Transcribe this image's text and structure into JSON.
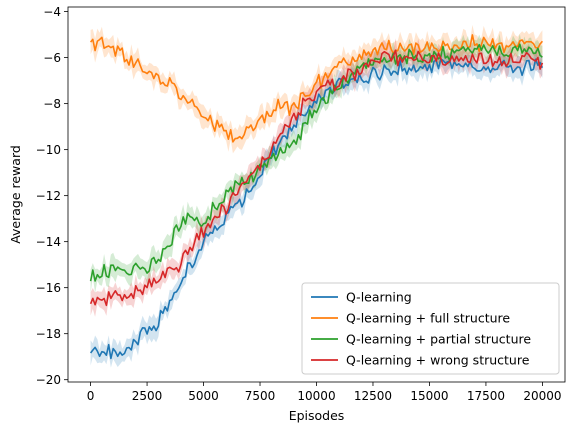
{
  "chart_data": {
    "type": "line",
    "xlabel": "Episodes",
    "ylabel": "Average reward",
    "xlim": [
      -1000,
      21000
    ],
    "ylim": [
      -20.1,
      -3.8
    ],
    "xticks": [
      0,
      2500,
      5000,
      7500,
      10000,
      12500,
      15000,
      17500,
      20000
    ],
    "xtick_labels": [
      "0",
      "2500",
      "5000",
      "7500",
      "10000",
      "12500",
      "15000",
      "17500",
      "20000"
    ],
    "yticks": [
      -20,
      -18,
      -16,
      -14,
      -12,
      -10,
      -8,
      -6,
      -4
    ],
    "ytick_labels": [
      "−20",
      "−18",
      "−16",
      "−14",
      "−12",
      "−10",
      "−8",
      "−6",
      "−4"
    ],
    "grid": false,
    "legend_position": "lower-right",
    "x": [
      0,
      1000,
      2000,
      3000,
      4000,
      5000,
      6000,
      7000,
      8000,
      9000,
      10000,
      11000,
      12000,
      13000,
      14000,
      15000,
      16000,
      17000,
      18000,
      19000,
      20000
    ],
    "series": [
      {
        "name": "Q-learning",
        "color": "#1f77b4",
        "values": [
          -18.7,
          -18.8,
          -18.3,
          -17.5,
          -15.8,
          -14.0,
          -13.0,
          -11.8,
          -10.2,
          -8.9,
          -7.9,
          -7.2,
          -6.9,
          -6.6,
          -6.4,
          -6.4,
          -6.3,
          -6.4,
          -6.4,
          -6.4,
          -6.4
        ]
      },
      {
        "name": "Q-learning + full structure",
        "color": "#ff7f0e",
        "values": [
          -5.3,
          -5.6,
          -6.2,
          -6.8,
          -7.7,
          -8.4,
          -9.4,
          -9.3,
          -8.2,
          -8.1,
          -7.2,
          -6.3,
          -5.9,
          -5.6,
          -5.6,
          -5.5,
          -5.4,
          -5.4,
          -5.4,
          -5.4,
          -5.4
        ]
      },
      {
        "name": "Q-learning + partial structure",
        "color": "#2ca02c",
        "values": [
          -15.5,
          -15.3,
          -15.2,
          -15.0,
          -13.1,
          -13.1,
          -12.0,
          -11.2,
          -10.4,
          -9.6,
          -8.2,
          -7.3,
          -6.3,
          -6.0,
          -6.0,
          -5.9,
          -5.8,
          -5.8,
          -5.7,
          -5.7,
          -5.7
        ]
      },
      {
        "name": "Q-learning + wrong structure",
        "color": "#d62728",
        "values": [
          -16.6,
          -16.5,
          -16.2,
          -15.6,
          -14.9,
          -13.5,
          -12.5,
          -11.2,
          -9.9,
          -8.6,
          -7.5,
          -7.0,
          -6.5,
          -6.0,
          -6.0,
          -6.0,
          -6.0,
          -6.0,
          -6.1,
          -6.1,
          -6.1
        ]
      }
    ]
  }
}
